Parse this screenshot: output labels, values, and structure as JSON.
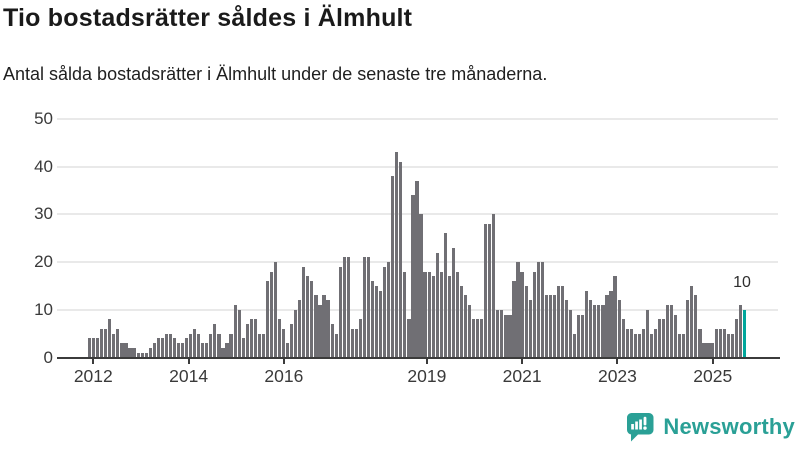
{
  "chart_data": {
    "type": "bar",
    "title": "Tio bostadsrätter såldes i Älmhult",
    "subtitle": "Antal sålda bostadsrätter i Älmhult under de senaste tre månaderna.",
    "ylim": [
      0,
      50
    ],
    "yticks": [
      0,
      10,
      20,
      30,
      40,
      50
    ],
    "xticks": [
      2012,
      2014,
      2016,
      2019,
      2021,
      2023,
      2025
    ],
    "grid": "horizontal",
    "bar_unit": "month",
    "highlight": {
      "index": 162,
      "value": 10,
      "label": "10"
    },
    "values": [
      4,
      4,
      4,
      6,
      6,
      8,
      5,
      6,
      3,
      3,
      2,
      2,
      1,
      1,
      1,
      2,
      3,
      4,
      4,
      5,
      5,
      4,
      3,
      3,
      4,
      5,
      6,
      5,
      3,
      3,
      5,
      7,
      5,
      2,
      3,
      5,
      11,
      10,
      4,
      7,
      8,
      8,
      5,
      5,
      16,
      18,
      20,
      8,
      6,
      3,
      7,
      10,
      12,
      19,
      17,
      16,
      13,
      11,
      13,
      12,
      7,
      5,
      19,
      21,
      21,
      6,
      6,
      8,
      21,
      21,
      16,
      15,
      14,
      19,
      20,
      38,
      43,
      41,
      18,
      8,
      34,
      37,
      30,
      18,
      18,
      17,
      22,
      18,
      26,
      17,
      23,
      18,
      15,
      13,
      11,
      8,
      8,
      8,
      28,
      28,
      30,
      10,
      10,
      9,
      9,
      16,
      20,
      18,
      15,
      12,
      18,
      20,
      20,
      13,
      13,
      13,
      15,
      15,
      12,
      10,
      5,
      9,
      9,
      14,
      12,
      11,
      11,
      11,
      13,
      14,
      17,
      12,
      8,
      6,
      6,
      5,
      5,
      6,
      10,
      5,
      6,
      8,
      8,
      11,
      11,
      9,
      5,
      5,
      12,
      15,
      13,
      6,
      3,
      3,
      3,
      6,
      6,
      6,
      5,
      5,
      8,
      11,
      10
    ]
  },
  "colors": {
    "bar": "#706f74",
    "highlight": "#00a69b",
    "grid": "#e9e9e9",
    "axis": "#3b3b3b",
    "title_text": "#1a1a1a",
    "tick_text": "#3a3a3a",
    "logo": "#2aa096"
  },
  "footer": {
    "brand": "Newsworthy"
  }
}
